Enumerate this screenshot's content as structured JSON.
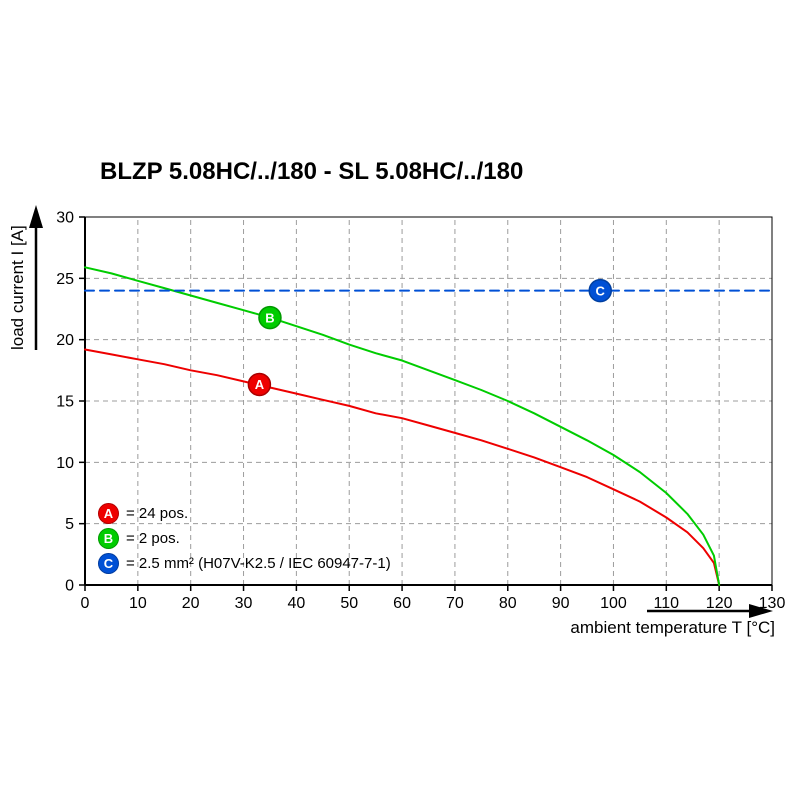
{
  "title": "BLZP 5.08HC/../180 - SL 5.08HC/../180",
  "chart_data": {
    "type": "line",
    "title": "BLZP 5.08HC/../180 - SL 5.08HC/../180",
    "xlabel": "ambient temperature T [°C]",
    "ylabel": "load current I [A]",
    "xlim": [
      0,
      130
    ],
    "ylim": [
      0,
      30
    ],
    "xticks": [
      0,
      10,
      20,
      30,
      40,
      50,
      60,
      70,
      80,
      90,
      100,
      110,
      120,
      130
    ],
    "yticks": [
      0,
      5,
      10,
      15,
      20,
      25,
      30
    ],
    "grid": true,
    "grid_style": "dashed",
    "series": [
      {
        "name": "A",
        "label": "24 pos.",
        "color": "#ee0000",
        "edge": "#aa0000",
        "points": [
          [
            0,
            19.2
          ],
          [
            5,
            18.8
          ],
          [
            10,
            18.4
          ],
          [
            15,
            18.0
          ],
          [
            20,
            17.5
          ],
          [
            25,
            17.1
          ],
          [
            30,
            16.6
          ],
          [
            35,
            16.1
          ],
          [
            40,
            15.6
          ],
          [
            45,
            15.1
          ],
          [
            50,
            14.6
          ],
          [
            55,
            14.0
          ],
          [
            60,
            13.6
          ],
          [
            65,
            13.0
          ],
          [
            70,
            12.4
          ],
          [
            75,
            11.8
          ],
          [
            80,
            11.1
          ],
          [
            85,
            10.4
          ],
          [
            90,
            9.6
          ],
          [
            95,
            8.8
          ],
          [
            100,
            7.8
          ],
          [
            105,
            6.8
          ],
          [
            110,
            5.5
          ],
          [
            114,
            4.3
          ],
          [
            117,
            3.0
          ],
          [
            119,
            1.8
          ],
          [
            120,
            0
          ]
        ]
      },
      {
        "name": "B",
        "label": "2 pos.",
        "color": "#00cc00",
        "edge": "#009900",
        "points": [
          [
            0,
            25.9
          ],
          [
            5,
            25.4
          ],
          [
            10,
            24.8
          ],
          [
            15,
            24.2
          ],
          [
            20,
            23.6
          ],
          [
            25,
            23.0
          ],
          [
            30,
            22.4
          ],
          [
            35,
            21.8
          ],
          [
            40,
            21.1
          ],
          [
            45,
            20.4
          ],
          [
            50,
            19.6
          ],
          [
            55,
            18.9
          ],
          [
            60,
            18.3
          ],
          [
            65,
            17.5
          ],
          [
            70,
            16.7
          ],
          [
            75,
            15.9
          ],
          [
            80,
            15.0
          ],
          [
            85,
            14.0
          ],
          [
            90,
            12.9
          ],
          [
            95,
            11.8
          ],
          [
            100,
            10.6
          ],
          [
            105,
            9.2
          ],
          [
            110,
            7.5
          ],
          [
            114,
            5.8
          ],
          [
            117,
            4.1
          ],
          [
            119,
            2.4
          ],
          [
            120,
            0
          ]
        ]
      },
      {
        "name": "C",
        "label": "2.5 mm² (H07V-K2.5 / IEC 60947-7-1)",
        "color": "#0050d5",
        "edge": "#003fa0",
        "dash": "9 6",
        "points": [
          [
            0,
            24
          ],
          [
            130,
            24
          ]
        ]
      }
    ],
    "markers": [
      {
        "key": "A",
        "x": 33,
        "y": 16.35
      },
      {
        "key": "B",
        "x": 35,
        "y": 21.8
      },
      {
        "key": "C",
        "x": 97.5,
        "y": 24
      }
    ]
  },
  "legend": {
    "items": [
      {
        "key": "A",
        "label": "= 24 pos."
      },
      {
        "key": "B",
        "label": "= 2 pos."
      },
      {
        "key": "C",
        "label": "= 2.5 mm² (H07V-K2.5 / IEC 60947-7-1)"
      }
    ]
  }
}
